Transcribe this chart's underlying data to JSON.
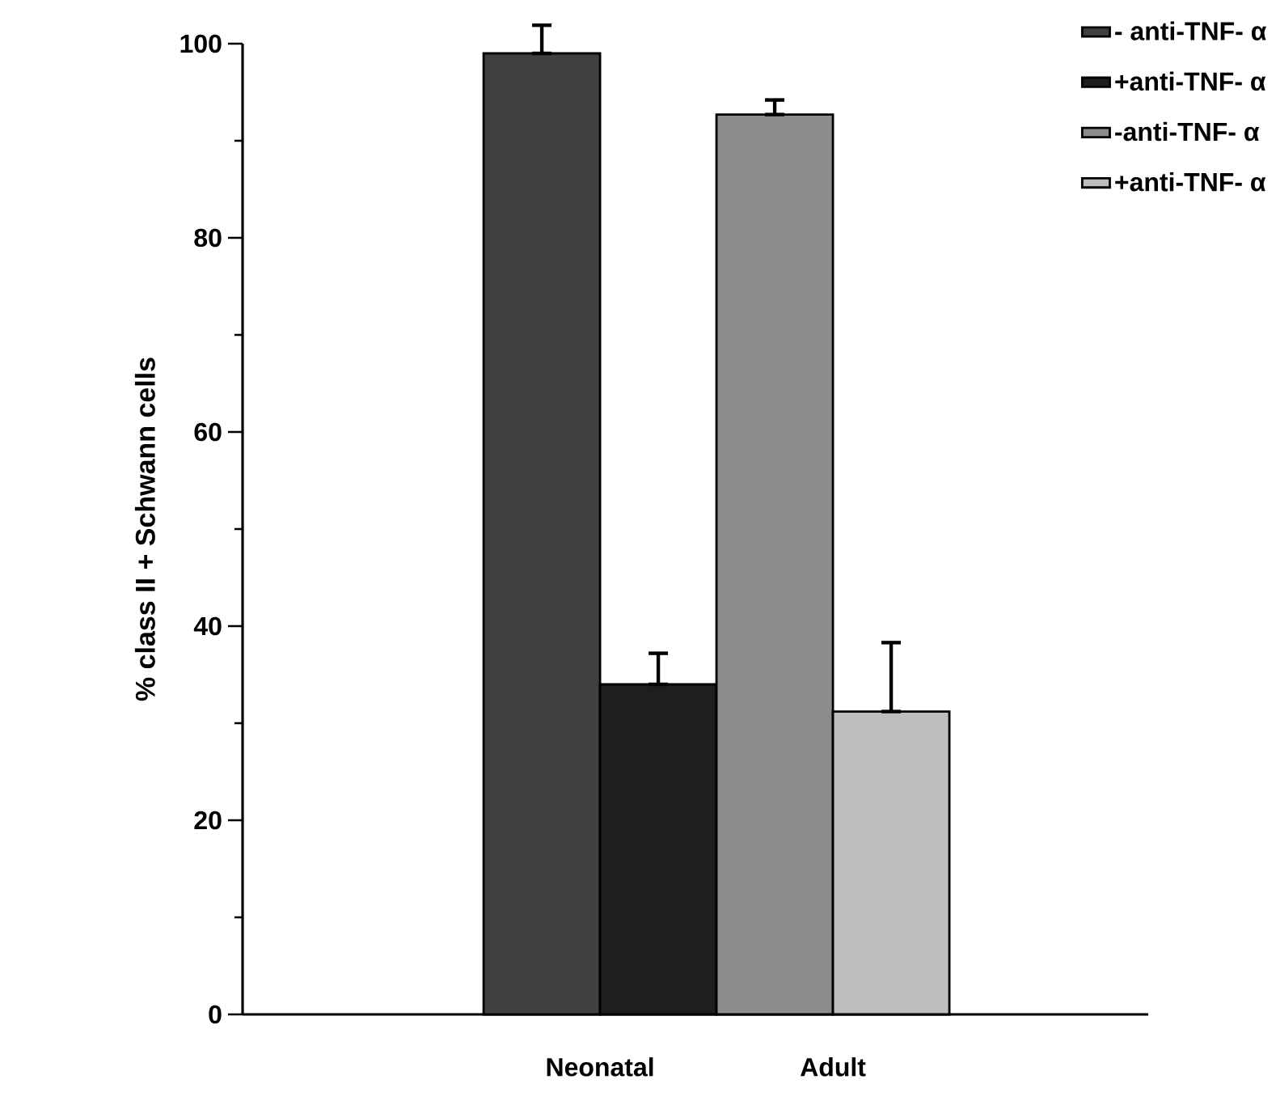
{
  "chart_data": {
    "type": "bar",
    "ylabel": "% class II + Schwann cells",
    "categories": [
      "Neonatal",
      "Adult"
    ],
    "series": [
      {
        "name": "- anti-TNF- α",
        "color": "#404040",
        "values": [
          99,
          null
        ],
        "errors": [
          [
            99,
            101.9
          ],
          null
        ]
      },
      {
        "name": "+anti-TNF- α",
        "color": "#1e1e1e",
        "values": [
          34,
          null
        ],
        "errors": [
          [
            34,
            37.2
          ],
          null
        ]
      },
      {
        "name": "-anti-TNF- α",
        "color": "#8c8c8c",
        "values": [
          null,
          92.7
        ],
        "errors": [
          null,
          [
            92.7,
            94.2
          ]
        ]
      },
      {
        "name": "+anti-TNF- α",
        "color": "#bdbdbd",
        "values": [
          null,
          31.2
        ],
        "errors": [
          null,
          [
            31.2,
            38.3
          ]
        ]
      }
    ],
    "ylim": [
      0,
      100
    ],
    "yticks": [
      0,
      20,
      40,
      60,
      80,
      100
    ],
    "grid": false,
    "legend": "top right"
  }
}
